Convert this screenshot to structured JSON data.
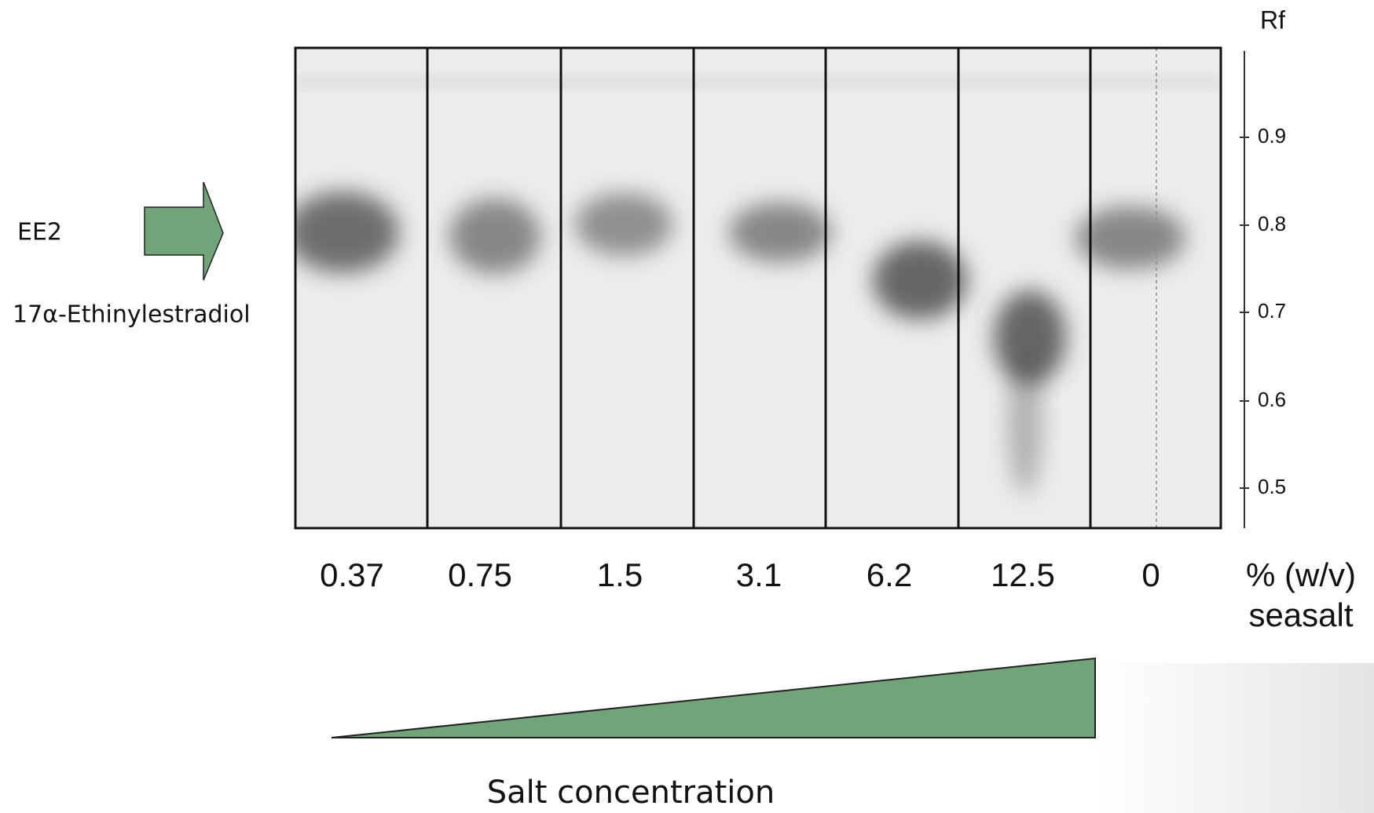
{
  "annotation": {
    "short_name": "EE2",
    "full_name": "17α-Ethinylestradiol"
  },
  "rf_axis": {
    "title": "Rf",
    "ticks": [
      "0.9",
      "0.8",
      "0.7",
      "0.6",
      "0.5"
    ]
  },
  "lanes": [
    "0.37",
    "0.75",
    "1.5",
    "3.1",
    "6.2",
    "12.5",
    "0"
  ],
  "unit": {
    "line1": "% (w/v)",
    "line2": "seasalt"
  },
  "gradient_label": "Salt concentration"
}
